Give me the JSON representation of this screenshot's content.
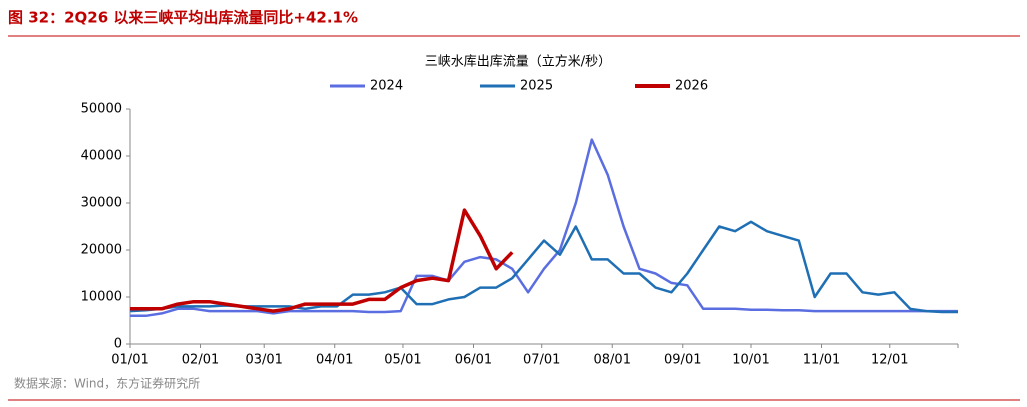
{
  "header": {
    "figure_title": "图 32：2Q26 以来三峡平均出库流量同比+42.1%"
  },
  "footer": {
    "source": "数据来源：Wind，东方证券研究所"
  },
  "chart_data": {
    "type": "line",
    "title": "三峡水库出库流量（立方米/秒）",
    "x": [
      "01/01",
      "01/08",
      "01/15",
      "01/22",
      "01/29",
      "02/05",
      "02/12",
      "02/19",
      "02/26",
      "03/05",
      "03/12",
      "03/19",
      "03/26",
      "04/02",
      "04/09",
      "04/16",
      "04/23",
      "04/30",
      "05/07",
      "05/14",
      "05/21",
      "05/28",
      "06/04",
      "06/11",
      "06/18",
      "06/25",
      "07/02",
      "07/09",
      "07/16",
      "07/23",
      "07/30",
      "08/06",
      "08/13",
      "08/20",
      "08/27",
      "09/03",
      "09/10",
      "09/17",
      "09/24",
      "10/01",
      "10/08",
      "10/15",
      "10/22",
      "10/29",
      "11/05",
      "11/12",
      "11/19",
      "11/26",
      "12/03",
      "12/10",
      "12/17",
      "12/24",
      "12/31"
    ],
    "xlim": [
      "01/01",
      "12/31"
    ],
    "xticks": [
      "01/01",
      "02/01",
      "03/01",
      "04/01",
      "05/01",
      "06/01",
      "07/01",
      "08/01",
      "09/01",
      "10/01",
      "11/01",
      "12/01"
    ],
    "ylim": [
      0,
      50000
    ],
    "yticks": [
      0,
      10000,
      20000,
      30000,
      40000,
      50000
    ],
    "series": [
      {
        "name": "2024",
        "color": "#5b6ee1",
        "values": [
          6000,
          6000,
          6500,
          7500,
          7500,
          7000,
          7000,
          7000,
          7000,
          6500,
          7000,
          7000,
          7000,
          7000,
          7000,
          6800,
          6800,
          7000,
          14500,
          14500,
          13500,
          17500,
          18500,
          18000,
          16000,
          11000,
          16000,
          20000,
          30000,
          43500,
          36000,
          25000,
          16000,
          15000,
          13000,
          12500,
          7500,
          7500,
          7500,
          7300,
          7300,
          7200,
          7200,
          7000,
          7000,
          7000,
          7000,
          7000,
          7000,
          7000,
          7000,
          7000,
          7000
        ]
      },
      {
        "name": "2025",
        "color": "#1f6fb5",
        "values": [
          7000,
          7200,
          7500,
          8000,
          8000,
          8000,
          8200,
          8000,
          8000,
          8000,
          8000,
          7500,
          8000,
          8000,
          10500,
          10500,
          11000,
          12000,
          8500,
          8500,
          9500,
          10000,
          12000,
          12000,
          14000,
          18000,
          22000,
          19000,
          25000,
          18000,
          18000,
          15000,
          15000,
          12000,
          11000,
          15000,
          20000,
          25000,
          24000,
          26000,
          24000,
          23000,
          22000,
          10000,
          15000,
          15000,
          11000,
          10500,
          11000,
          7500,
          7000,
          6800,
          6800
        ]
      },
      {
        "name": "2026",
        "color": "#c00000",
        "values": [
          7500,
          7500,
          7500,
          8500,
          9000,
          9000,
          8500,
          8000,
          7500,
          7000,
          7500,
          8500,
          8500,
          8500,
          8500,
          9500,
          9500,
          12000,
          13500,
          14000,
          13500,
          28500,
          23000,
          16000,
          19500,
          null,
          null,
          null,
          null,
          null,
          null,
          null,
          null,
          null,
          null,
          null,
          null,
          null,
          null,
          null,
          null,
          null,
          null,
          null,
          null,
          null,
          null,
          null,
          null,
          null,
          null,
          null,
          null
        ]
      }
    ]
  }
}
